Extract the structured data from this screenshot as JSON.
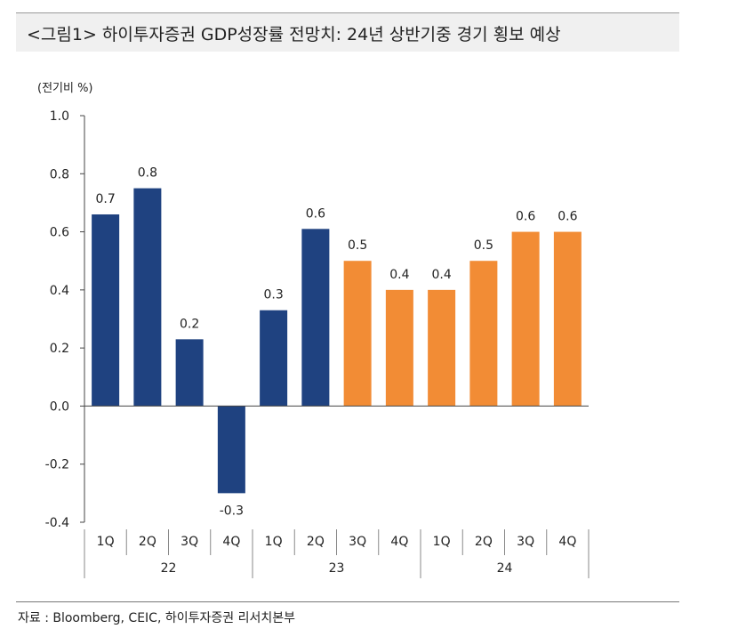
{
  "header": {
    "title": "<그림1> 하이투자증권 GDP성장률 전망치: 24년 상반기중 경기 횡보 예상"
  },
  "footer": {
    "source": "자료 : Bloomberg, CEIC, 하이투자증권 리서치본부"
  },
  "colors": {
    "actual": "#1f4280",
    "forecast": "#f28c35",
    "axis": "#444444"
  },
  "chart_data": {
    "type": "bar",
    "ylabel": "(전기비 %)",
    "ylim": [
      -0.4,
      1.0
    ],
    "yticks": [
      "1.0",
      "0.8",
      "0.6",
      "0.4",
      "0.2",
      "0.0",
      "-0.2",
      "-0.4"
    ],
    "grid": false,
    "categories": [
      "1Q",
      "2Q",
      "3Q",
      "4Q",
      "1Q",
      "2Q",
      "3Q",
      "4Q",
      "1Q",
      "2Q",
      "3Q",
      "4Q"
    ],
    "groups": [
      {
        "label": "22",
        "count": 4
      },
      {
        "label": "23",
        "count": 4
      },
      {
        "label": "24",
        "count": 4
      }
    ],
    "values": [
      0.66,
      0.75,
      0.23,
      -0.3,
      0.33,
      0.61,
      0.5,
      0.4,
      0.4,
      0.5,
      0.6,
      0.6
    ],
    "data_labels": [
      "0.7",
      "0.8",
      "0.2",
      "-0.3",
      "0.3",
      "0.6",
      "0.5",
      "0.4",
      "0.4",
      "0.5",
      "0.6",
      "0.6"
    ],
    "bar_types": [
      "actual",
      "actual",
      "actual",
      "actual",
      "actual",
      "actual",
      "forecast",
      "forecast",
      "forecast",
      "forecast",
      "forecast",
      "forecast"
    ]
  }
}
